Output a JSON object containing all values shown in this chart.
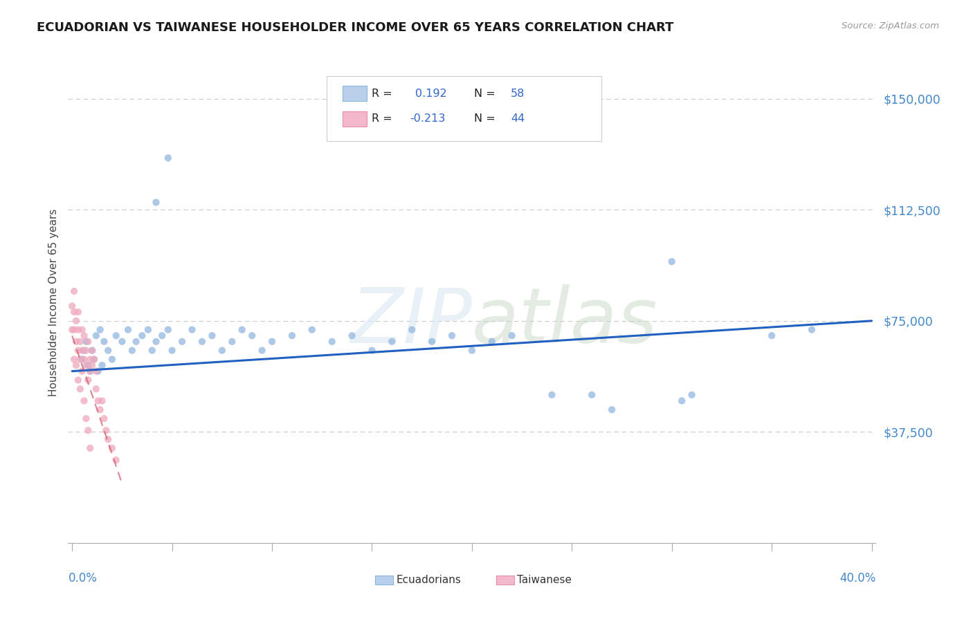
{
  "title": "ECUADORIAN VS TAIWANESE HOUSEHOLDER INCOME OVER 65 YEARS CORRELATION CHART",
  "source": "Source: ZipAtlas.com",
  "ylabel": "Householder Income Over 65 years",
  "xlim": [
    -0.002,
    0.402
  ],
  "ylim": [
    0,
    162500
  ],
  "yticks": [
    37500,
    75000,
    112500,
    150000
  ],
  "ytick_labels": [
    "$37,500",
    "$75,000",
    "$112,500",
    "$150,000"
  ],
  "background_color": "#ffffff",
  "grid_color": "#c8c8d0",
  "watermark": "ZIPatlas",
  "blue_color": "#92b8e0",
  "pink_color": "#f0a8bc",
  "blue_line_color": "#2060c0",
  "pink_line_color": "#d05060",
  "ec_points": [
    [
      0.005,
      62000
    ],
    [
      0.006,
      65000
    ],
    [
      0.007,
      68000
    ],
    [
      0.008,
      60000
    ],
    [
      0.009,
      58000
    ],
    [
      0.01,
      65000
    ],
    [
      0.011,
      62000
    ],
    [
      0.012,
      70000
    ],
    [
      0.013,
      58000
    ],
    [
      0.014,
      72000
    ],
    [
      0.015,
      60000
    ],
    [
      0.016,
      68000
    ],
    [
      0.018,
      65000
    ],
    [
      0.02,
      62000
    ],
    [
      0.022,
      70000
    ],
    [
      0.025,
      68000
    ],
    [
      0.028,
      72000
    ],
    [
      0.03,
      65000
    ],
    [
      0.032,
      68000
    ],
    [
      0.035,
      70000
    ],
    [
      0.038,
      72000
    ],
    [
      0.04,
      65000
    ],
    [
      0.042,
      68000
    ],
    [
      0.045,
      70000
    ],
    [
      0.048,
      72000
    ],
    [
      0.05,
      65000
    ],
    [
      0.042,
      115000
    ],
    [
      0.048,
      130000
    ],
    [
      0.055,
      68000
    ],
    [
      0.06,
      72000
    ],
    [
      0.065,
      68000
    ],
    [
      0.07,
      70000
    ],
    [
      0.075,
      65000
    ],
    [
      0.08,
      68000
    ],
    [
      0.085,
      72000
    ],
    [
      0.09,
      70000
    ],
    [
      0.095,
      65000
    ],
    [
      0.1,
      68000
    ],
    [
      0.11,
      70000
    ],
    [
      0.12,
      72000
    ],
    [
      0.13,
      68000
    ],
    [
      0.14,
      70000
    ],
    [
      0.15,
      65000
    ],
    [
      0.16,
      68000
    ],
    [
      0.17,
      72000
    ],
    [
      0.18,
      68000
    ],
    [
      0.19,
      70000
    ],
    [
      0.2,
      65000
    ],
    [
      0.21,
      68000
    ],
    [
      0.22,
      70000
    ],
    [
      0.24,
      50000
    ],
    [
      0.26,
      50000
    ],
    [
      0.27,
      45000
    ],
    [
      0.3,
      95000
    ],
    [
      0.305,
      48000
    ],
    [
      0.31,
      50000
    ],
    [
      0.35,
      70000
    ],
    [
      0.37,
      72000
    ]
  ],
  "tw_points": [
    [
      0.001,
      78000
    ],
    [
      0.001,
      72000
    ],
    [
      0.002,
      75000
    ],
    [
      0.002,
      68000
    ],
    [
      0.003,
      72000
    ],
    [
      0.003,
      65000
    ],
    [
      0.003,
      78000
    ],
    [
      0.004,
      68000
    ],
    [
      0.004,
      62000
    ],
    [
      0.005,
      72000
    ],
    [
      0.005,
      65000
    ],
    [
      0.006,
      70000
    ],
    [
      0.006,
      62000
    ],
    [
      0.007,
      65000
    ],
    [
      0.007,
      60000
    ],
    [
      0.008,
      68000
    ],
    [
      0.008,
      55000
    ],
    [
      0.009,
      62000
    ],
    [
      0.009,
      58000
    ],
    [
      0.01,
      65000
    ],
    [
      0.01,
      60000
    ],
    [
      0.011,
      62000
    ],
    [
      0.012,
      58000
    ],
    [
      0.012,
      52000
    ],
    [
      0.013,
      48000
    ],
    [
      0.014,
      45000
    ],
    [
      0.015,
      48000
    ],
    [
      0.016,
      42000
    ],
    [
      0.017,
      38000
    ],
    [
      0.018,
      35000
    ],
    [
      0.02,
      32000
    ],
    [
      0.022,
      28000
    ],
    [
      0.0,
      80000
    ],
    [
      0.0,
      72000
    ],
    [
      0.001,
      85000
    ],
    [
      0.001,
      62000
    ],
    [
      0.002,
      60000
    ],
    [
      0.003,
      55000
    ],
    [
      0.004,
      52000
    ],
    [
      0.005,
      58000
    ],
    [
      0.006,
      48000
    ],
    [
      0.007,
      42000
    ],
    [
      0.008,
      38000
    ],
    [
      0.009,
      32000
    ]
  ],
  "ec_trend": [
    0.0,
    0.4,
    58000,
    75000
  ],
  "tw_trend_x": [
    0.0,
    0.025
  ],
  "tw_trend_y": [
    70000,
    20000
  ]
}
